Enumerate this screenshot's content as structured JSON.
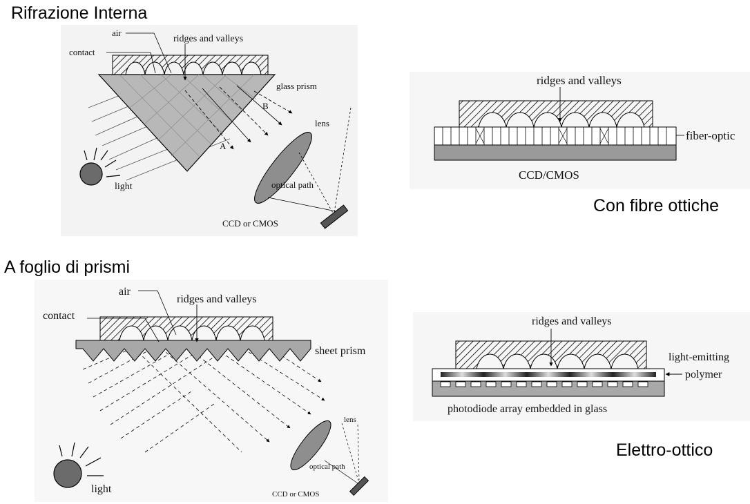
{
  "panels": {
    "internal": {
      "heading": "Rifrazione Interna",
      "labels": {
        "air": "air",
        "contact": "contact",
        "ridges": "ridges and valleys",
        "prism": "glass prism",
        "b": "B",
        "a": "A",
        "lens": "lens",
        "light": "light",
        "path": "optical path",
        "sensor": "CCD or CMOS"
      }
    },
    "fiber": {
      "heading": "Con fibre ottiche",
      "labels": {
        "ridges": "ridges and valleys",
        "fiber": "fiber-optic",
        "sensor": "CCD/CMOS"
      }
    },
    "sheet": {
      "heading": "A foglio di prismi",
      "labels": {
        "air": "air",
        "contact": "contact",
        "ridges": "ridges and valleys",
        "prism": "sheet prism",
        "lens": "lens",
        "light": "light",
        "path": "optical path",
        "sensor": "CCD or CMOS"
      }
    },
    "electro": {
      "heading": "Elettro-ottico",
      "labels": {
        "ridges": "ridges and valleys",
        "emitting": "light-emitting",
        "polymer": "polymer",
        "photodiode": "photodiode array embedded in glass"
      }
    }
  }
}
